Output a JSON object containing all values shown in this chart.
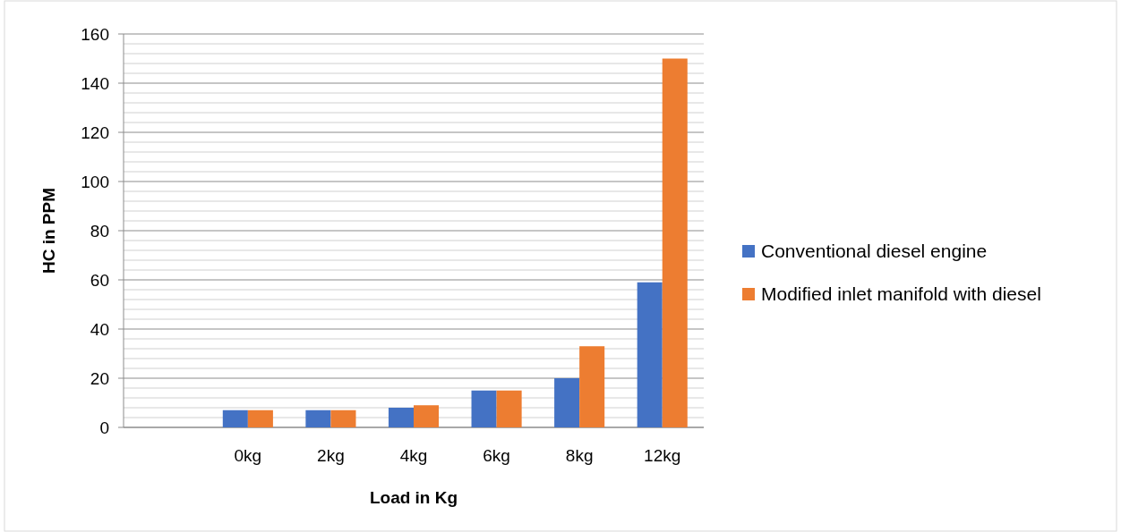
{
  "chart_data": {
    "type": "bar",
    "xlabel": "Load in Kg",
    "ylabel": "HC in PPM",
    "categories": [
      null,
      "0kg",
      "2kg",
      "4kg",
      "6kg",
      "8kg",
      "12kg"
    ],
    "series": [
      {
        "name": "Conventional diesel engine",
        "color": "#4472c4",
        "values": [
          null,
          7,
          7,
          8,
          15,
          20,
          59
        ]
      },
      {
        "name": "Modified inlet manifold with diesel",
        "color": "#ed7d31",
        "values": [
          null,
          7,
          7,
          9,
          15,
          33,
          150
        ]
      }
    ],
    "ylim": [
      0,
      160
    ],
    "yticks": [
      0,
      {
        "value": 4,
        "label": null
      },
      {
        "value": 8,
        "label": null
      },
      {
        "value": 12,
        "label": null
      },
      {
        "value": 16,
        "label": null
      },
      20,
      {
        "value": 24,
        "label": null
      },
      {
        "value": 28,
        "label": null
      },
      {
        "value": 32,
        "label": null
      },
      {
        "value": 36,
        "label": null
      },
      40,
      {
        "value": 44,
        "label": null
      },
      {
        "value": 48,
        "label": null
      },
      {
        "value": 52,
        "label": null
      },
      {
        "value": 56,
        "label": null
      },
      60,
      {
        "value": 64,
        "label": null
      },
      {
        "value": 68,
        "label": null
      },
      {
        "value": 72,
        "label": null
      },
      {
        "value": 76,
        "label": null
      },
      80,
      {
        "value": 84,
        "label": null
      },
      {
        "value": 88,
        "label": null
      },
      {
        "value": 92,
        "label": null
      },
      {
        "value": 96,
        "label": null
      },
      100,
      {
        "value": 104,
        "label": null
      },
      {
        "value": 108,
        "label": null
      },
      {
        "value": 112,
        "label": null
      },
      {
        "value": 116,
        "label": null
      },
      120,
      {
        "value": 124,
        "label": null
      },
      {
        "value": 128,
        "label": null
      },
      {
        "value": 132,
        "label": null
      },
      {
        "value": 136,
        "label": null
      },
      140,
      {
        "value": 144,
        "label": null
      },
      {
        "value": 148,
        "label": null
      },
      {
        "value": 152,
        "label": null
      },
      {
        "value": 156,
        "label": null
      },
      160
    ],
    "grid": "y",
    "legend": "right"
  }
}
